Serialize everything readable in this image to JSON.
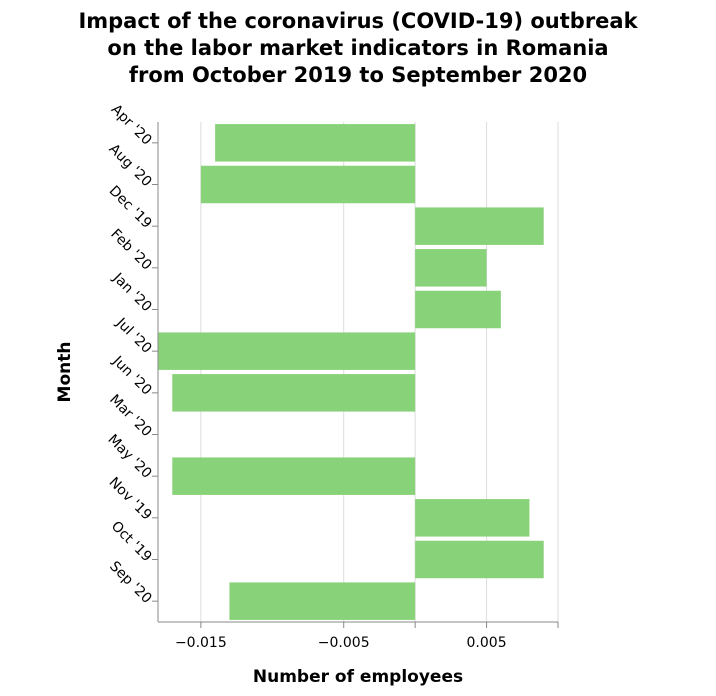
{
  "chart_data": {
    "type": "bar",
    "orientation": "horizontal",
    "title": [
      "Impact of the coronavirus (COVID-19) outbreak",
      "on the labor market indicators in Romania",
      "from October 2019 to September 2020"
    ],
    "xlabel": "Number of employees",
    "ylabel": "Month",
    "categories": [
      "Apr '20",
      "Aug '20",
      "Dec '19",
      "Feb '20",
      "Jan '20",
      "Jul '20",
      "Jun '20",
      "Mar '20",
      "May '20",
      "Nov '19",
      "Oct '19",
      "Sep '20"
    ],
    "values": [
      -0.014,
      -0.015,
      0.009,
      0.005,
      0.006,
      -0.018,
      -0.017,
      0,
      -0.017,
      0.008,
      0.009,
      -0.013
    ],
    "xlim": [
      -0.018,
      0.01
    ],
    "xticks": [
      -0.015,
      -0.005,
      0.005
    ],
    "xtick_labels": [
      "−0.015",
      "−0.005",
      "0.005"
    ],
    "grid": true,
    "bar_color": "#88d27a"
  }
}
